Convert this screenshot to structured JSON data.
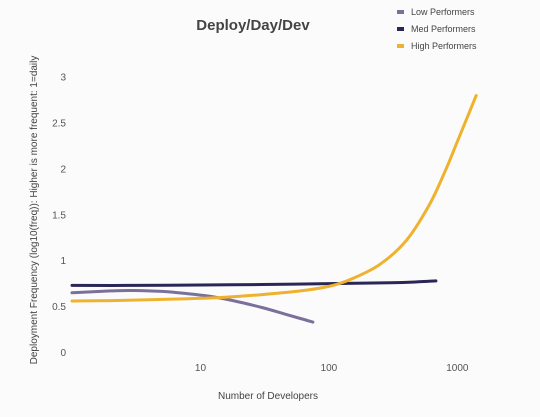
{
  "chart_data": {
    "type": "line",
    "title": "Deploy/Day/Dev",
    "xlabel": "Number of Developers",
    "ylabel": "Deployment Frequency (log10(freq)): Higher is more frequent: 1=daily",
    "x_scale": "log",
    "xlim": [
      1.0,
      1500
    ],
    "ylim": [
      -0.05,
      3.1
    ],
    "x_ticks": [
      10,
      100,
      1000
    ],
    "x_tick_labels": [
      "10",
      "100",
      "1000"
    ],
    "y_ticks": [
      0,
      0.5,
      1,
      1.5,
      2,
      2.5,
      3
    ],
    "y_tick_labels": [
      "0",
      "0.5",
      "1",
      "1.5",
      "2",
      "2.5",
      "3"
    ],
    "grid": false,
    "legend_position": "top-right",
    "series": [
      {
        "name": "Low Performers",
        "color": "#7b6f9c",
        "x": [
          1,
          2,
          3,
          5,
          8,
          12,
          20,
          30,
          45,
          60,
          75
        ],
        "y": [
          0.65,
          0.67,
          0.675,
          0.665,
          0.64,
          0.61,
          0.55,
          0.49,
          0.42,
          0.37,
          0.33
        ]
      },
      {
        "name": "Med Performers",
        "color": "#2a2757",
        "x": [
          1,
          3,
          10,
          30,
          100,
          300,
          500,
          680
        ],
        "y": [
          0.73,
          0.73,
          0.735,
          0.74,
          0.75,
          0.76,
          0.77,
          0.78
        ]
      },
      {
        "name": "High Performers",
        "color": "#eeb22e",
        "x": [
          1,
          2,
          4,
          8,
          15,
          30,
          60,
          100,
          150,
          250,
          400,
          600,
          800,
          1000,
          1200,
          1400
        ],
        "y": [
          0.56,
          0.565,
          0.575,
          0.585,
          0.6,
          0.63,
          0.67,
          0.72,
          0.8,
          0.96,
          1.22,
          1.6,
          1.97,
          2.3,
          2.57,
          2.8
        ]
      }
    ]
  }
}
